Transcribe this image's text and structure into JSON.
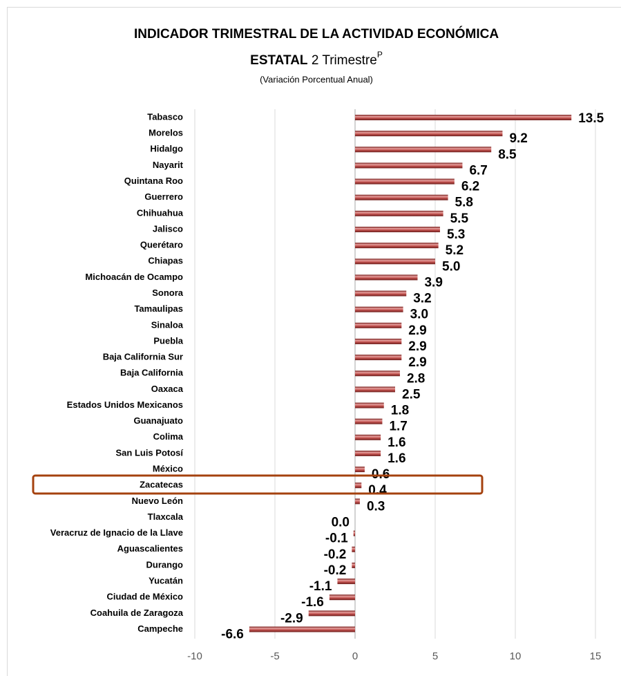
{
  "chart_data": {
    "type": "barh",
    "title": "INDICADOR TRIMESTRAL DE LA ACTIVIDAD ECONÓMICA",
    "title_bold": "ESTATAL",
    "title_rest": "2 Trimestre",
    "title_superscript": "P",
    "subtitle": "(Variación Porcentual Anual)",
    "categories": [
      "Tabasco",
      "Morelos",
      "Hidalgo",
      "Nayarit",
      "Quintana Roo",
      "Guerrero",
      "Chihuahua",
      "Jalisco",
      "Querétaro",
      "Chiapas",
      "Michoacán de Ocampo",
      "Sonora",
      "Tamaulipas",
      "Sinaloa",
      "Puebla",
      "Baja California Sur",
      "Baja California",
      "Oaxaca",
      "Estados Unidos Mexicanos",
      "Guanajuato",
      "Colima",
      "San Luis Potosí",
      "México",
      "Zacatecas",
      "Nuevo León",
      "Tlaxcala",
      "Veracruz de Ignacio de la Llave",
      "Aguascalientes",
      "Durango",
      "Yucatán",
      "Ciudad de México",
      "Coahuila de Zaragoza",
      "Campeche"
    ],
    "values": [
      13.5,
      9.2,
      8.5,
      6.7,
      6.2,
      5.8,
      5.5,
      5.3,
      5.2,
      5.0,
      3.9,
      3.2,
      3.0,
      2.9,
      2.9,
      2.9,
      2.8,
      2.5,
      1.8,
      1.7,
      1.6,
      1.6,
      0.6,
      0.4,
      0.3,
      0.0,
      -0.1,
      -0.2,
      -0.2,
      -1.1,
      -1.6,
      -2.9,
      -6.6
    ],
    "value_labels": [
      "13.5",
      "9.2",
      "8.5",
      "6.7",
      "6.2",
      "5.8",
      "5.5",
      "5.3",
      "5.2",
      "5.0",
      "3.9",
      "3.2",
      "3.0",
      "2.9",
      "2.9",
      "2.9",
      "2.8",
      "2.5",
      "1.8",
      "1.7",
      "1.6",
      "1.6",
      "0.6",
      "0.4",
      "0.3",
      "0.0",
      "-0.1",
      "-0.2",
      "-0.2",
      "-1.1",
      "-1.6",
      "-2.9",
      "-6.6"
    ],
    "color": "#c0504d",
    "xlim": [
      -10,
      15
    ],
    "xticks": [
      -10,
      -5,
      0,
      5,
      10,
      15
    ],
    "grid": true
  }
}
